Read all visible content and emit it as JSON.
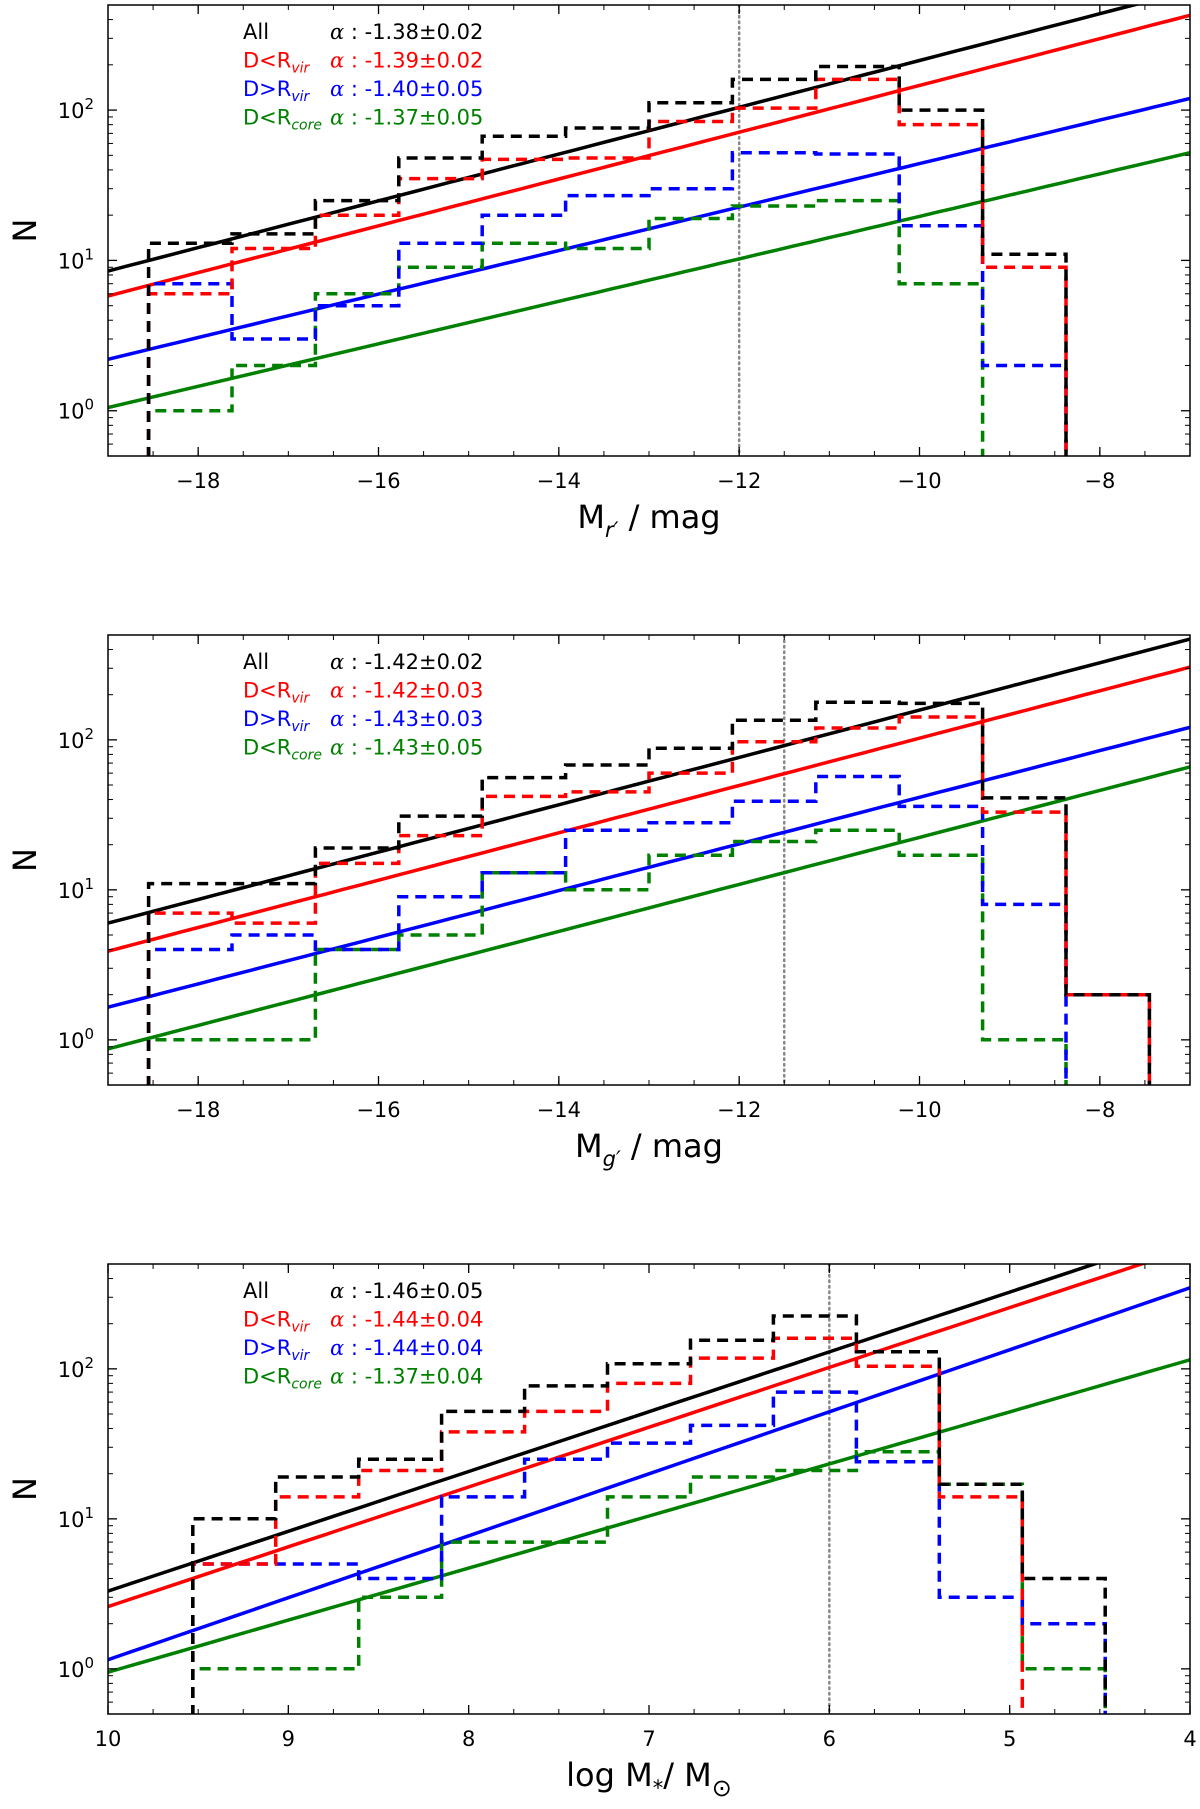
{
  "chart_data": [
    {
      "type": "step-histogram-with-fits",
      "xlabel": "M_r' / mag",
      "xlabel_main": "M",
      "xlabel_sub": "r′",
      "xlabel_rest": " / mag",
      "ylabel": "N",
      "xscale": "linear",
      "yscale": "log",
      "xlim": [
        -19,
        -7
      ],
      "ylim": [
        0.5,
        500
      ],
      "xticks": [
        -18,
        -16,
        -14,
        -12,
        -10,
        -8
      ],
      "xtick_labels": [
        "−18",
        "−16",
        "−14",
        "−12",
        "−10",
        "−8"
      ],
      "yticks": [
        1,
        10,
        100
      ],
      "ytick_labels": [
        [
          "10",
          "0"
        ],
        [
          "10",
          "1"
        ],
        [
          "10",
          "2"
        ]
      ],
      "completeness_limit": -12.0,
      "bin_edges": [
        -18.55,
        -17.625,
        -16.7,
        -15.775,
        -14.85,
        -13.925,
        -13.0,
        -12.075,
        -11.15,
        -10.225,
        -9.3,
        -8.375
      ],
      "series": [
        {
          "name": "All",
          "color": "#000000",
          "alpha": "-1.38",
          "err": "0.02",
          "counts": [
            13,
            15,
            25,
            48,
            67,
            76,
            112,
            160,
            195,
            100,
            11
          ],
          "fit": {
            "slope": 0.1556,
            "anchor_x": -19,
            "anchor_y": 8.5
          }
        },
        {
          "name": "D<R_vir",
          "color": "#ff0000",
          "alpha": "-1.39",
          "err": "0.02",
          "counts": [
            6,
            12,
            20,
            35,
            47,
            48,
            84,
            103,
            160,
            80,
            9
          ],
          "fit": {
            "slope": 0.1556,
            "anchor_x": -19,
            "anchor_y": 5.8
          }
        },
        {
          "name": "D>R_vir",
          "color": "#0000ff",
          "alpha": "-1.40",
          "err": "0.05",
          "counts": [
            7,
            3,
            5,
            13,
            20,
            27,
            30,
            52,
            51,
            17,
            2
          ],
          "fit": {
            "slope": 0.1446,
            "anchor_x": -19,
            "anchor_y": 2.2
          }
        },
        {
          "name": "D<R_core",
          "color": "#008000",
          "alpha": "-1.37",
          "err": "0.05",
          "counts": [
            1,
            2,
            6,
            9,
            13,
            12,
            19,
            23,
            25,
            7,
            null
          ],
          "fit": {
            "slope": 0.1413,
            "anchor_x": -19,
            "anchor_y": 1.05
          }
        }
      ]
    },
    {
      "type": "step-histogram-with-fits",
      "xlabel": "M_g' / mag",
      "xlabel_main": "M",
      "xlabel_sub": "g′",
      "xlabel_rest": " / mag",
      "ylabel": "N",
      "xscale": "linear",
      "yscale": "log",
      "xlim": [
        -19,
        -7
      ],
      "ylim": [
        0.5,
        500
      ],
      "xticks": [
        -18,
        -16,
        -14,
        -12,
        -10,
        -8
      ],
      "xtick_labels": [
        "−18",
        "−16",
        "−14",
        "−12",
        "−10",
        "−8"
      ],
      "yticks": [
        1,
        10,
        100
      ],
      "ytick_labels": [
        [
          "10",
          "0"
        ],
        [
          "10",
          "1"
        ],
        [
          "10",
          "2"
        ]
      ],
      "completeness_limit": -11.5,
      "bin_edges": [
        -18.55,
        -17.625,
        -16.7,
        -15.775,
        -14.85,
        -13.925,
        -13.0,
        -12.075,
        -11.15,
        -10.225,
        -9.3,
        -8.375,
        -7.45
      ],
      "series": [
        {
          "name": "All",
          "color": "#000000",
          "alpha": "-1.42",
          "err": "0.02",
          "counts": [
            11,
            11,
            19,
            31,
            56,
            68,
            88,
            135,
            178,
            175,
            41,
            2
          ],
          "fit": {
            "slope": 0.1578,
            "anchor_x": -19,
            "anchor_y": 6.0
          }
        },
        {
          "name": "D<R_vir",
          "color": "#ff0000",
          "alpha": "-1.42",
          "err": "0.03",
          "counts": [
            7,
            6,
            15,
            23,
            42,
            45,
            60,
            97,
            120,
            142,
            33,
            2
          ],
          "fit": {
            "slope": 0.1578,
            "anchor_x": -19,
            "anchor_y": 3.9
          }
        },
        {
          "name": "D>R_vir",
          "color": "#0000ff",
          "alpha": "-1.43",
          "err": "0.03",
          "counts": [
            4,
            5,
            4,
            9,
            13,
            25,
            28,
            39,
            57,
            36,
            8,
            null
          ],
          "fit": {
            "slope": 0.1555,
            "anchor_x": -19,
            "anchor_y": 1.65
          }
        },
        {
          "name": "D<R_core",
          "color": "#008000",
          "alpha": "-1.43",
          "err": "0.05",
          "counts": [
            1,
            1,
            4,
            5,
            13,
            10,
            17,
            21,
            25,
            17,
            1,
            null
          ],
          "fit": {
            "slope": 0.1567,
            "anchor_x": -19,
            "anchor_y": 0.87
          }
        }
      ]
    },
    {
      "type": "step-histogram-with-fits",
      "xlabel": "log M_* / M_sun",
      "xlabel_main": "log M",
      "xlabel_sub": "*",
      "xlabel_rest": "/ M",
      "xlabel_sub2": "⊙",
      "ylabel": "N",
      "xscale": "linear",
      "x_inverted": true,
      "yscale": "log",
      "xlim": [
        10,
        4
      ],
      "ylim": [
        0.5,
        500
      ],
      "xticks": [
        10,
        9,
        8,
        7,
        6,
        5,
        4
      ],
      "xtick_labels": [
        "10",
        "9",
        "8",
        "7",
        "6",
        "5",
        "4"
      ],
      "yticks": [
        1,
        10,
        100
      ],
      "ytick_labels": [
        [
          "10",
          "0"
        ],
        [
          "10",
          "1"
        ],
        [
          "10",
          "2"
        ]
      ],
      "completeness_limit": 6.0,
      "bin_edges": [
        9.53,
        9.07,
        8.61,
        8.15,
        7.69,
        7.23,
        6.77,
        6.31,
        5.85,
        5.39,
        4.93,
        4.47
      ],
      "series": [
        {
          "name": "All",
          "color": "#000000",
          "alpha": "-1.46",
          "err": "0.05",
          "counts": [
            10,
            19,
            25,
            52,
            77,
            108,
            155,
            225,
            130,
            17,
            4
          ],
          "fit": {
            "slope": -0.3986,
            "anchor_x": 10,
            "anchor_y": 3.3
          }
        },
        {
          "name": "D<R_vir",
          "color": "#ff0000",
          "alpha": "-1.44",
          "err": "0.04",
          "counts": [
            5,
            14,
            21,
            38,
            52,
            80,
            118,
            160,
            104,
            14,
            null
          ],
          "fit": {
            "slope": -0.3986,
            "anchor_x": 10,
            "anchor_y": 2.6
          }
        },
        {
          "name": "D>R_vir",
          "color": "#0000ff",
          "alpha": "-1.44",
          "err": "0.04",
          "counts": [
            5,
            5,
            4,
            14,
            25,
            32,
            42,
            70,
            24,
            3,
            2
          ],
          "fit": {
            "slope": -0.4133,
            "anchor_x": 10,
            "anchor_y": 1.15
          }
        },
        {
          "name": "D<R_core",
          "color": "#008000",
          "alpha": "-1.37",
          "err": "0.04",
          "counts": [
            1,
            1,
            3,
            7,
            7,
            14,
            19,
            21,
            28,
            17,
            1
          ],
          "fit": {
            "slope": -0.3471,
            "anchor_x": 10,
            "anchor_y": 0.95
          }
        }
      ]
    }
  ]
}
